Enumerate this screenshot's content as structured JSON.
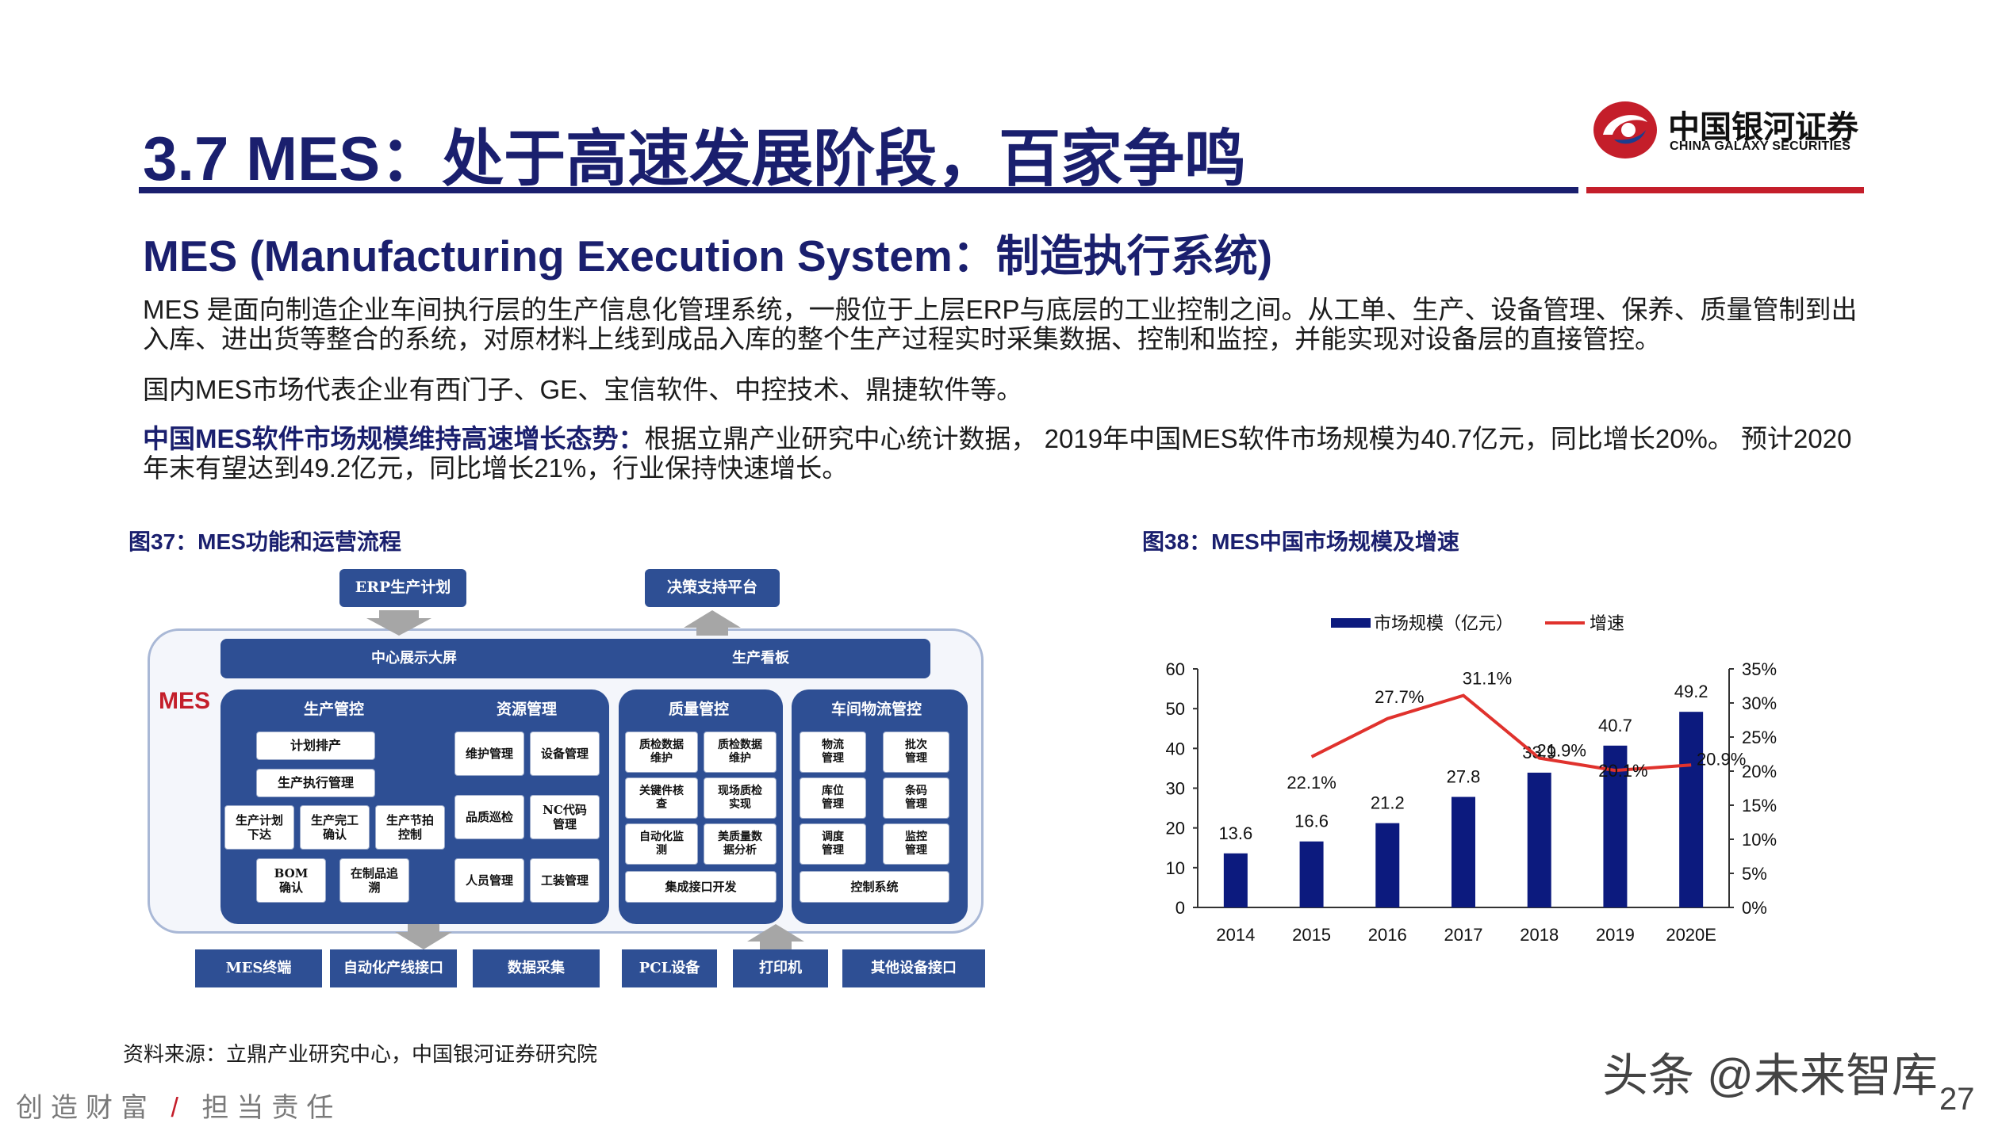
{
  "header": {
    "title": "3.7 MES：处于高速发展阶段，百家争鸣",
    "logo_cn": "中国银河证券",
    "logo_en": "CHINA GALAXY SECURITIES"
  },
  "section": {
    "subtitle": "MES (Manufacturing Execution System：制造执行系统)",
    "para1": "MES 是面向制造企业车间执行层的生产信息化管理系统，一般位于上层ERP与底层的工业控制之间。从工单、生产、设备管理、保养、质量管制到出入库、进出货等整合的系统，对原材料上线到成品入库的整个生产过程实时采集数据、控制和监控，并能实现对设备层的直接管控。",
    "para2": "国内MES市场代表企业有西门子、GE、宝信软件、中控技术、鼎捷软件等。",
    "para3_bold": "中国MES软件市场规模维持高速增长态势：",
    "para3_rest": "根据立鼎产业研究中心统计数据， 2019年中国MES软件市场规模为40.7亿元，同比增长20%。 预计2020年末有望达到49.2亿元，同比增长21%，行业保持快速增长。"
  },
  "figure37": {
    "caption": "图37：MES功能和运营流程",
    "top_boxes": [
      "ERP生产计划",
      "决策支持平台"
    ],
    "banner_left": "中心展示大屏",
    "banner_right": "生产看板",
    "mes_label": "MES",
    "panels": [
      {
        "title": "生产管控",
        "items": [
          "计划排产",
          "生产执行管理",
          "生产计划\n下达",
          "生产完工\n确认",
          "生产节拍\n控制",
          "BOM\n确认",
          "在制品追\n溯"
        ]
      },
      {
        "title": "资源管理",
        "items": [
          "维护管理",
          "设备管理",
          "品质巡检",
          "NC代码\n管理",
          "人员管理",
          "工装管理"
        ]
      },
      {
        "title": "质量管控",
        "items": [
          "质检数据\n维护",
          "质检数据\n维护",
          "关键件核\n查",
          "现场质检\n实现",
          "自动化监\n测",
          "美质量数\n据分析",
          "集成接口开发"
        ]
      },
      {
        "title": "车间物流管控",
        "items": [
          "物流\n管理",
          "批次\n管理",
          "库位\n管理",
          "条码\n管理",
          "调度\n管理",
          "监控\n管理",
          "控制系统"
        ]
      }
    ],
    "bottom_boxes": [
      "MES终端",
      "自动化产线接口",
      "数据采集",
      "PCL设备",
      "打印机",
      "其他设备接口"
    ]
  },
  "figure38": {
    "caption": "图38：MES中国市场规模及增速"
  },
  "chart_data": {
    "type": "bar",
    "categories": [
      "2014",
      "2015",
      "2016",
      "2017",
      "2018",
      "2019",
      "2020E"
    ],
    "series": [
      {
        "name": "市场规模（亿元）",
        "type": "bar",
        "axis": "left",
        "values": [
          13.6,
          16.6,
          21.2,
          27.8,
          33.9,
          40.7,
          49.2
        ],
        "color": "#0c1a7e"
      },
      {
        "name": "增速",
        "type": "line",
        "axis": "right",
        "values": [
          null,
          22.1,
          27.7,
          31.1,
          21.9,
          20.1,
          20.9
        ],
        "labels": [
          "",
          "22.1%",
          "27.7%",
          "31.1%",
          "21.9%",
          "20.1%",
          "20.9%"
        ],
        "color": "#e0322d"
      }
    ],
    "bar_labels": [
      "13.6",
      "16.6",
      "21.2",
      "27.8",
      "33.9",
      "40.7",
      "49.2"
    ],
    "ylim": [
      0,
      60
    ],
    "y_ticks": [
      "0",
      "10",
      "20",
      "30",
      "40",
      "50",
      "60"
    ],
    "y2lim": [
      0,
      35
    ],
    "y2_ticks": [
      "0%",
      "5%",
      "10%",
      "15%",
      "20%",
      "25%",
      "30%",
      "35%"
    ],
    "legend_position": "top",
    "grid": false
  },
  "footer": {
    "source": "资料来源：立鼎产业研究中心，中国银河证券研究院",
    "slogan_left": "创造财富",
    "slogan_sep": "/",
    "slogan_right": "担当责任",
    "page_number": "27",
    "watermark": "头条 @未来智库"
  },
  "colors": {
    "navy": "#1a1f6e",
    "brand_red": "#c41e2a",
    "bar": "#0c1a7e",
    "line": "#e0322d",
    "diagram_blue": "#2e4f94"
  }
}
